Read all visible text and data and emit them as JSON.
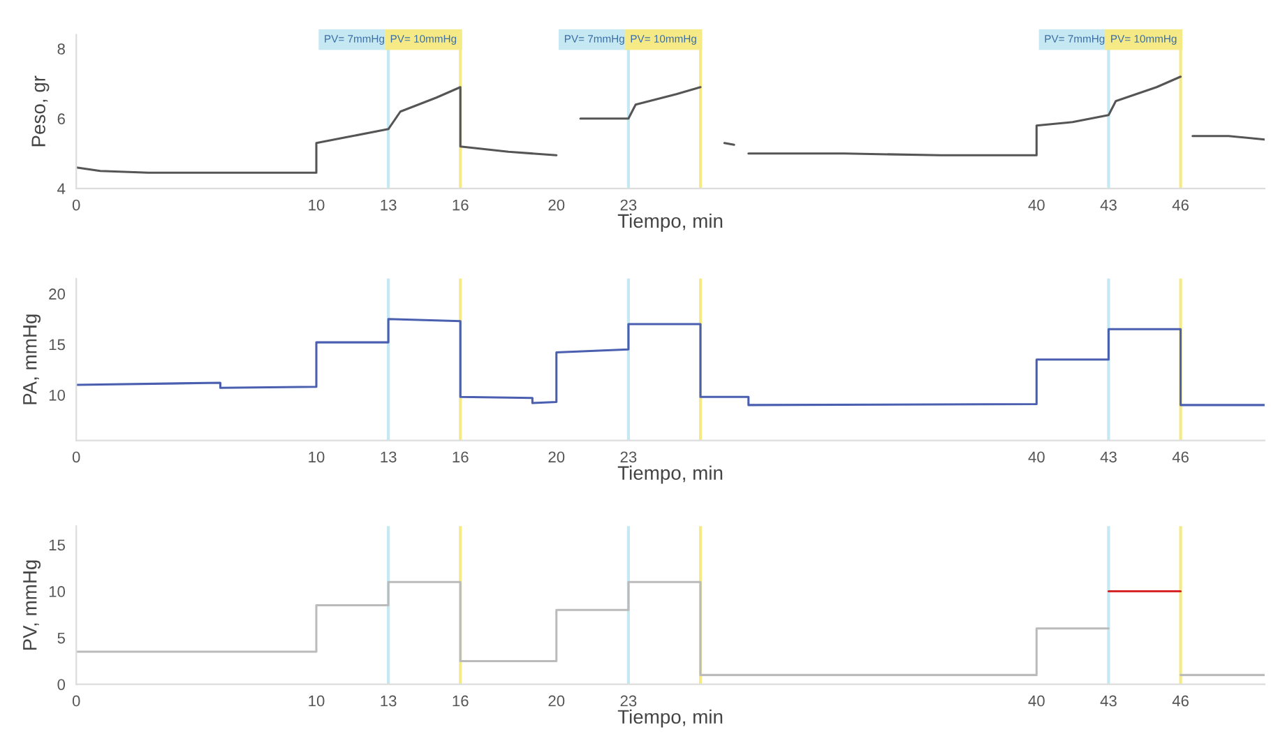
{
  "chart_data": [
    {
      "type": "line",
      "ylabel": "Peso, gr",
      "xlabel": "Tiempo, min",
      "xlim": [
        0,
        49.5
      ],
      "ylim": [
        4,
        8.4
      ],
      "xticks": [
        0,
        10,
        13,
        16,
        20,
        23,
        40,
        43,
        46
      ],
      "yticks": [
        4,
        6,
        8
      ],
      "grid": false,
      "line_style": "solid",
      "series": [
        {
          "color": "#555555",
          "x": [
            0,
            1,
            3,
            6,
            10,
            10,
            11.5,
            13,
            13.5,
            15,
            16,
            16,
            18,
            20,
            20.5,
            21,
            23,
            23.3,
            25,
            26,
            26.5,
            27,
            27.4,
            27.7,
            28,
            32,
            36,
            40,
            40,
            41.5,
            43,
            43.3,
            45,
            46,
            46.2,
            46.5,
            48,
            49.5
          ],
          "values": [
            4.6,
            4.5,
            4.45,
            4.45,
            4.45,
            5.3,
            5.5,
            5.7,
            6.2,
            6.6,
            6.9,
            5.2,
            5.05,
            4.95,
            null,
            6.0,
            6.0,
            6.4,
            6.7,
            6.9,
            null,
            5.3,
            5.25,
            null,
            5.0,
            5.0,
            4.95,
            4.95,
            5.8,
            5.9,
            6.1,
            6.5,
            6.9,
            7.2,
            null,
            5.5,
            5.5,
            5.4
          ]
        }
      ],
      "annotations": [
        "PV= 7mmHg",
        "PV= 10mmHg",
        "PV= 7mmHg",
        "PV= 10mmHg",
        "PV= 7mmHg",
        "PV= 10mmHg"
      ],
      "ref_lines": [
        {
          "axis": "x",
          "value": 13,
          "color": "#c5e8f3"
        },
        {
          "axis": "x",
          "value": 16,
          "color": "#f6ea86"
        },
        {
          "axis": "x",
          "value": 23,
          "color": "#c5e8f3"
        },
        {
          "axis": "x",
          "value": 26,
          "color": "#f6ea86"
        },
        {
          "axis": "x",
          "value": 43,
          "color": "#c5e8f3"
        },
        {
          "axis": "x",
          "value": 46,
          "color": "#f6ea86"
        }
      ]
    },
    {
      "type": "line",
      "ylabel": "PA, mmHg",
      "xlabel": "Tiempo, min",
      "xlim": [
        0,
        49.5
      ],
      "ylim": [
        5.5,
        21.5
      ],
      "xticks": [
        0,
        10,
        13,
        16,
        20,
        23,
        40,
        43,
        46
      ],
      "yticks": [
        10,
        15,
        20
      ],
      "grid": false,
      "line_style": "solid",
      "series": [
        {
          "color": "#4a5fb0",
          "x": [
            0,
            6,
            6,
            10,
            10,
            13,
            13,
            16,
            16,
            19,
            19,
            20,
            20,
            23,
            23,
            26,
            26,
            28,
            28,
            40,
            40,
            43,
            43,
            46,
            46,
            49.5
          ],
          "values": [
            11.0,
            11.2,
            10.7,
            10.8,
            15.2,
            15.2,
            17.5,
            17.3,
            9.8,
            9.7,
            9.2,
            9.3,
            14.2,
            14.5,
            17.0,
            17.0,
            9.8,
            9.8,
            9.0,
            9.1,
            13.5,
            13.5,
            16.5,
            16.5,
            9.0,
            9.0
          ]
        }
      ],
      "ref_lines": [
        {
          "axis": "x",
          "value": 13,
          "color": "#c5e8f3"
        },
        {
          "axis": "x",
          "value": 16,
          "color": "#f6ea86"
        },
        {
          "axis": "x",
          "value": 23,
          "color": "#c5e8f3"
        },
        {
          "axis": "x",
          "value": 26,
          "color": "#f6ea86"
        },
        {
          "axis": "x",
          "value": 43,
          "color": "#c5e8f3"
        },
        {
          "axis": "x",
          "value": 46,
          "color": "#f6ea86"
        }
      ]
    },
    {
      "type": "line",
      "ylabel": "PV, mmHg",
      "xlabel": "Tiempo, min",
      "xlim": [
        0,
        49.5
      ],
      "ylim": [
        0,
        17
      ],
      "xticks": [
        0,
        10,
        13,
        16,
        20,
        23,
        40,
        43,
        46
      ],
      "yticks": [
        0,
        5,
        10,
        15
      ],
      "grid": false,
      "line_style": "solid",
      "series": [
        {
          "color": "#bbbbbb",
          "x": [
            0,
            10,
            10,
            13,
            13,
            16,
            16,
            20,
            20,
            23,
            23,
            26,
            26,
            40,
            40,
            43
          ],
          "values": [
            3.5,
            3.5,
            8.5,
            8.5,
            11,
            11,
            2.5,
            2.5,
            8,
            8,
            11,
            11,
            1,
            1,
            6,
            6
          ]
        },
        {
          "color": "#bbbbbb",
          "x": [
            46,
            49.5
          ],
          "values": [
            1,
            1
          ]
        },
        {
          "color": "#d62728",
          "x": [
            43,
            46
          ],
          "values": [
            10,
            10
          ]
        }
      ],
      "ref_lines": [
        {
          "axis": "x",
          "value": 13,
          "color": "#c5e8f3"
        },
        {
          "axis": "x",
          "value": 16,
          "color": "#f6ea86"
        },
        {
          "axis": "x",
          "value": 23,
          "color": "#c5e8f3"
        },
        {
          "axis": "x",
          "value": 26,
          "color": "#f6ea86"
        },
        {
          "axis": "x",
          "value": 43,
          "color": "#c5e8f3"
        },
        {
          "axis": "x",
          "value": 46,
          "color": "#f6ea86"
        }
      ]
    }
  ]
}
